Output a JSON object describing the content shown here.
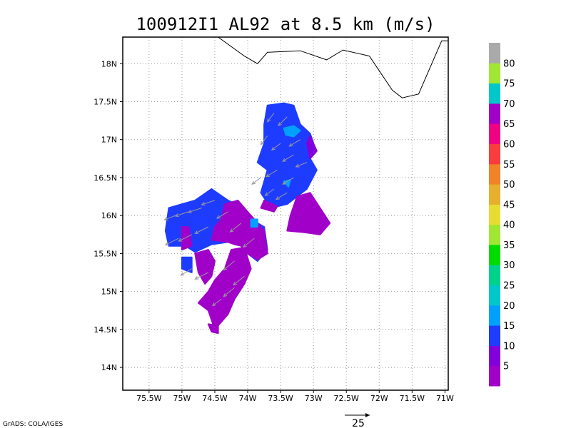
{
  "chart_data": {
    "type": "heatmap",
    "title": "100912I1 AL92 at 8.5 km (m/s)",
    "credit": "GrADS: COLA/IGES",
    "reference_vector": {
      "label": "25",
      "value": 25
    },
    "xlim": [
      -75.9,
      -70.95
    ],
    "ylim": [
      13.7,
      18.35
    ],
    "x_ticks": [
      {
        "value": -75.5,
        "label": "75.5W"
      },
      {
        "value": -75.0,
        "label": "75W"
      },
      {
        "value": -74.5,
        "label": "74.5W"
      },
      {
        "value": -74.0,
        "label": "74W"
      },
      {
        "value": -73.5,
        "label": "73.5W"
      },
      {
        "value": -73.0,
        "label": "73W"
      },
      {
        "value": -72.5,
        "label": "72.5W"
      },
      {
        "value": -72.0,
        "label": "72W"
      },
      {
        "value": -71.5,
        "label": "71.5W"
      },
      {
        "value": -71.0,
        "label": "71W"
      }
    ],
    "y_ticks": [
      {
        "value": 14.0,
        "label": "14N"
      },
      {
        "value": 14.5,
        "label": "14.5N"
      },
      {
        "value": 15.0,
        "label": "15N"
      },
      {
        "value": 15.5,
        "label": "15.5N"
      },
      {
        "value": 16.0,
        "label": "16N"
      },
      {
        "value": 16.5,
        "label": "16.5N"
      },
      {
        "value": 17.0,
        "label": "17N"
      },
      {
        "value": 17.5,
        "label": "17.5N"
      },
      {
        "value": 18.0,
        "label": "18N"
      }
    ],
    "grid": true,
    "colorbar": {
      "placement": "right",
      "colors": [
        "#a000c8",
        "#8200dc",
        "#1e3cff",
        "#00a0ff",
        "#00c8c8",
        "#00d28c",
        "#00dc00",
        "#a0e632",
        "#e6dc32",
        "#e6af2d",
        "#f08228",
        "#fa3c3c",
        "#f00082",
        "#a000c8",
        "#00c8c8",
        "#a0e632",
        "#aaaaaa"
      ],
      "labels": [
        "5",
        "10",
        "15",
        "20",
        "25",
        "30",
        "35",
        "40",
        "45",
        "50",
        "55",
        "60",
        "65",
        "70",
        "75",
        "80"
      ]
    },
    "coastline": [
      [
        -74.0,
        18.45
      ],
      [
        -74.45,
        18.35
      ],
      [
        -74.05,
        18.1
      ],
      [
        -73.85,
        18.0
      ],
      [
        -73.7,
        18.15
      ],
      [
        -73.2,
        18.17
      ],
      [
        -72.8,
        18.05
      ],
      [
        -72.55,
        18.18
      ],
      [
        -72.15,
        18.1
      ],
      [
        -71.8,
        17.65
      ],
      [
        -71.65,
        17.55
      ],
      [
        -71.4,
        17.6
      ],
      [
        -71.05,
        18.3
      ],
      [
        -70.9,
        18.3
      ]
    ],
    "regions": [
      {
        "color": "#1e3cff",
        "polygon": [
          [
            -73.7,
            17.45
          ],
          [
            -73.45,
            17.48
          ],
          [
            -73.3,
            17.45
          ],
          [
            -73.2,
            17.2
          ],
          [
            -73.05,
            17.08
          ],
          [
            -73.0,
            16.95
          ],
          [
            -73.05,
            16.75
          ],
          [
            -72.95,
            16.6
          ],
          [
            -73.1,
            16.35
          ],
          [
            -73.25,
            16.25
          ],
          [
            -73.4,
            16.15
          ],
          [
            -73.65,
            16.1
          ],
          [
            -73.8,
            16.3
          ],
          [
            -73.7,
            16.6
          ],
          [
            -73.85,
            16.7
          ],
          [
            -73.75,
            16.95
          ],
          [
            -73.75,
            17.2
          ]
        ]
      },
      {
        "color": "#8200dc",
        "polygon": [
          [
            -73.05,
            17.05
          ],
          [
            -72.95,
            16.85
          ],
          [
            -73.05,
            16.75
          ],
          [
            -73.1,
            16.95
          ]
        ]
      },
      {
        "color": "#a000c8",
        "polygon": [
          [
            -73.8,
            16.1
          ],
          [
            -73.6,
            16.05
          ],
          [
            -73.55,
            16.12
          ],
          [
            -73.75,
            16.2
          ]
        ]
      },
      {
        "color": "#00a0ff",
        "polygon": [
          [
            -73.45,
            17.15
          ],
          [
            -73.3,
            17.18
          ],
          [
            -73.2,
            17.12
          ],
          [
            -73.3,
            17.04
          ],
          [
            -73.42,
            17.06
          ]
        ]
      },
      {
        "color": "#00a0ff",
        "polygon": [
          [
            -73.45,
            16.45
          ],
          [
            -73.35,
            16.47
          ],
          [
            -73.38,
            16.38
          ]
        ]
      },
      {
        "color": "#a000c8",
        "polygon": [
          [
            -73.25,
            16.25
          ],
          [
            -73.05,
            16.3
          ],
          [
            -72.9,
            16.1
          ],
          [
            -72.75,
            15.9
          ],
          [
            -72.9,
            15.75
          ],
          [
            -73.15,
            15.78
          ],
          [
            -73.4,
            15.8
          ],
          [
            -73.35,
            16.0
          ]
        ]
      },
      {
        "color": "#1e3cff",
        "polygon": [
          [
            -75.2,
            16.1
          ],
          [
            -74.8,
            16.2
          ],
          [
            -74.55,
            16.35
          ],
          [
            -74.3,
            16.2
          ],
          [
            -74.05,
            16.1
          ],
          [
            -73.95,
            15.95
          ],
          [
            -73.75,
            15.85
          ],
          [
            -73.7,
            15.55
          ],
          [
            -73.85,
            15.4
          ],
          [
            -74.0,
            15.5
          ],
          [
            -74.15,
            15.7
          ],
          [
            -74.3,
            15.65
          ],
          [
            -74.55,
            15.62
          ],
          [
            -74.8,
            15.52
          ],
          [
            -74.95,
            15.6
          ],
          [
            -75.2,
            15.6
          ],
          [
            -75.25,
            15.8
          ]
        ]
      },
      {
        "color": "#a000c8",
        "polygon": [
          [
            -74.35,
            16.15
          ],
          [
            -74.15,
            16.2
          ],
          [
            -73.95,
            16.0
          ],
          [
            -73.75,
            15.8
          ],
          [
            -73.7,
            15.5
          ],
          [
            -73.85,
            15.42
          ],
          [
            -74.0,
            15.5
          ],
          [
            -74.1,
            15.6
          ],
          [
            -74.2,
            15.62
          ],
          [
            -74.3,
            15.65
          ],
          [
            -74.55,
            15.68
          ],
          [
            -74.5,
            15.85
          ],
          [
            -74.4,
            15.95
          ]
        ]
      },
      {
        "color": "#a000c8",
        "polygon": [
          [
            -75.0,
            15.85
          ],
          [
            -74.9,
            15.85
          ],
          [
            -74.85,
            15.6
          ],
          [
            -75.0,
            15.55
          ]
        ]
      },
      {
        "color": "#a000c8",
        "polygon": [
          [
            -74.8,
            15.5
          ],
          [
            -74.6,
            15.55
          ],
          [
            -74.5,
            15.4
          ],
          [
            -74.55,
            15.2
          ],
          [
            -74.65,
            15.1
          ],
          [
            -74.75,
            15.25
          ]
        ]
      },
      {
        "color": "#1e3cff",
        "polygon": [
          [
            -75.0,
            15.45
          ],
          [
            -74.85,
            15.45
          ],
          [
            -74.85,
            15.25
          ],
          [
            -75.0,
            15.3
          ]
        ]
      },
      {
        "color": "#a000c8",
        "polygon": [
          [
            -74.25,
            15.55
          ],
          [
            -74.05,
            15.58
          ],
          [
            -73.95,
            15.3
          ],
          [
            -74.05,
            15.1
          ],
          [
            -74.2,
            14.9
          ],
          [
            -74.3,
            14.7
          ],
          [
            -74.45,
            14.55
          ],
          [
            -74.5,
            14.5
          ],
          [
            -74.6,
            14.75
          ],
          [
            -74.75,
            14.85
          ],
          [
            -74.6,
            15.0
          ],
          [
            -74.5,
            15.15
          ],
          [
            -74.35,
            15.3
          ]
        ]
      },
      {
        "color": "#a000c8",
        "polygon": [
          [
            -74.6,
            14.57
          ],
          [
            -74.45,
            14.55
          ],
          [
            -74.45,
            14.45
          ],
          [
            -74.55,
            14.47
          ]
        ]
      },
      {
        "color": "#00a0ff",
        "polygon": [
          [
            -73.95,
            15.95
          ],
          [
            -73.85,
            15.95
          ],
          [
            -73.85,
            15.85
          ],
          [
            -73.95,
            15.85
          ]
        ]
      }
    ],
    "vectors": [
      {
        "x": -73.6,
        "y": 17.35,
        "u": -3,
        "v": -4
      },
      {
        "x": -73.4,
        "y": 17.3,
        "u": -4,
        "v": -4
      },
      {
        "x": -73.2,
        "y": 17.0,
        "u": -5,
        "v": -3
      },
      {
        "x": -73.5,
        "y": 16.95,
        "u": -4,
        "v": -3
      },
      {
        "x": -73.3,
        "y": 16.8,
        "u": -5,
        "v": -3
      },
      {
        "x": -73.1,
        "y": 16.7,
        "u": -5,
        "v": -2
      },
      {
        "x": -73.55,
        "y": 16.6,
        "u": -5,
        "v": -3
      },
      {
        "x": -73.3,
        "y": 16.5,
        "u": -5,
        "v": -3
      },
      {
        "x": -73.6,
        "y": 16.35,
        "u": -4,
        "v": -3
      },
      {
        "x": -73.4,
        "y": 16.3,
        "u": -5,
        "v": -3
      },
      {
        "x": -73.7,
        "y": 17.05,
        "u": -3,
        "v": -4
      },
      {
        "x": -73.8,
        "y": 16.5,
        "u": -4,
        "v": -3
      },
      {
        "x": -74.5,
        "y": 16.2,
        "u": -6,
        "v": -2
      },
      {
        "x": -74.7,
        "y": 16.1,
        "u": -6,
        "v": -2
      },
      {
        "x": -74.9,
        "y": 16.05,
        "u": -6,
        "v": -2
      },
      {
        "x": -75.1,
        "y": 16.0,
        "u": -5,
        "v": -2
      },
      {
        "x": -74.3,
        "y": 16.05,
        "u": -5,
        "v": -3
      },
      {
        "x": -74.6,
        "y": 15.85,
        "u": -6,
        "v": -3
      },
      {
        "x": -74.85,
        "y": 15.75,
        "u": -6,
        "v": -3
      },
      {
        "x": -75.05,
        "y": 15.7,
        "u": -6,
        "v": -3
      },
      {
        "x": -74.1,
        "y": 15.9,
        "u": -5,
        "v": -4
      },
      {
        "x": -73.9,
        "y": 15.7,
        "u": -5,
        "v": -4
      },
      {
        "x": -74.2,
        "y": 15.4,
        "u": -5,
        "v": -4
      },
      {
        "x": -74.05,
        "y": 15.2,
        "u": -5,
        "v": -4
      },
      {
        "x": -74.2,
        "y": 15.05,
        "u": -5,
        "v": -4
      },
      {
        "x": -74.4,
        "y": 14.9,
        "u": -4,
        "v": -3
      },
      {
        "x": -74.85,
        "y": 15.3,
        "u": -5,
        "v": -3
      },
      {
        "x": -74.6,
        "y": 15.25,
        "u": -6,
        "v": -3
      }
    ]
  }
}
